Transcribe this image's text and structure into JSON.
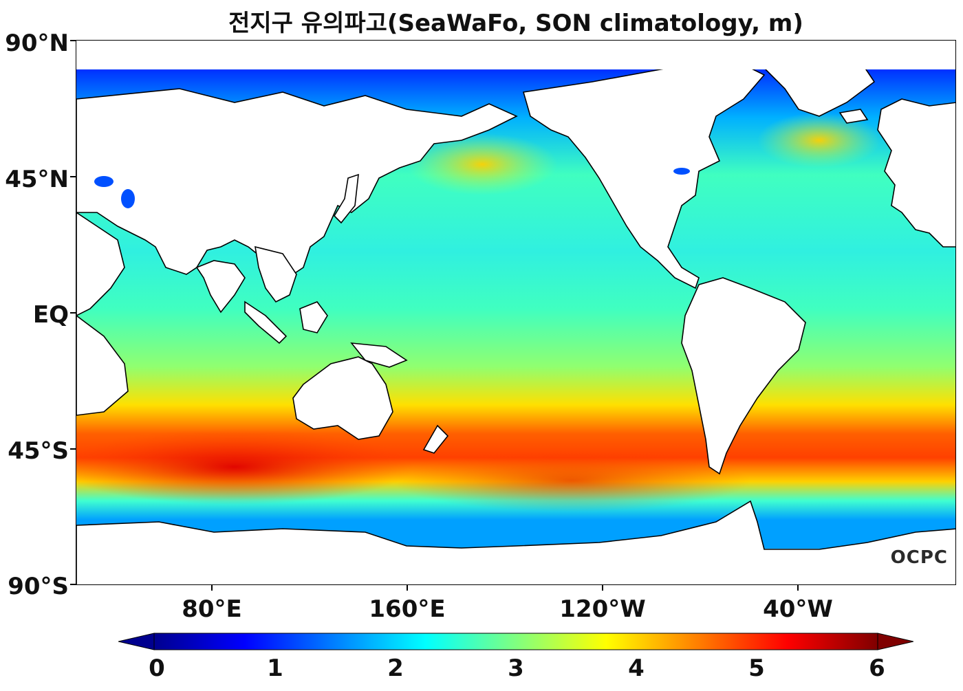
{
  "title": "전지구 유의파고(SeaWaFo, SON climatology, m)",
  "map": {
    "lat_labels": [
      "90°N",
      "45°N",
      "EQ",
      "45°S",
      "90°S"
    ],
    "lon_labels": [
      "80°E",
      "160°E",
      "120°W",
      "40°W"
    ],
    "watermark": "OCPC"
  },
  "colorbar": {
    "labels": [
      "0",
      "1",
      "2",
      "3",
      "4",
      "5",
      "6"
    ],
    "min": 0,
    "max": 6,
    "unit": "m",
    "colormap": "jet",
    "extend": "both",
    "colors": [
      "#00008f",
      "#0000ff",
      "#0080ff",
      "#00ffff",
      "#80ff80",
      "#ffff00",
      "#ff8000",
      "#ff0000",
      "#800000"
    ]
  },
  "legend_colors": {
    "land": "#ffffff",
    "coastline": "#000000"
  }
}
